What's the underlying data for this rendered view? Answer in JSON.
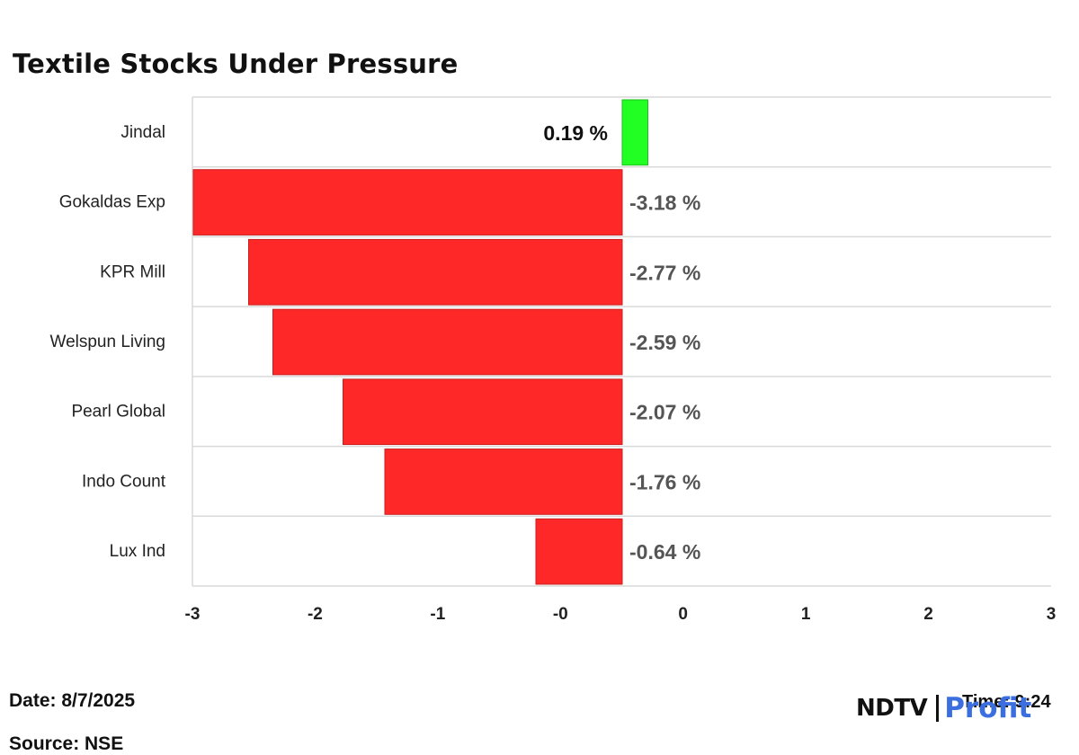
{
  "title": "Textile Stocks Under Pressure",
  "chart_data": {
    "type": "bar",
    "orientation": "horizontal",
    "categories": [
      "Jindal",
      "Gokaldas Exp",
      "KPR Mill",
      "Welspun Living",
      "Pearl Global",
      "Indo Count",
      "Lux Ind"
    ],
    "values": [
      0.19,
      -3.18,
      -2.77,
      -2.59,
      -2.07,
      -1.76,
      -0.64
    ],
    "data_labels": [
      "0.19 %",
      "-3.18 %",
      "-2.77 %",
      "-2.59 %",
      "-2.07 %",
      "-1.76 %",
      "-0.64 %"
    ],
    "xlim": [
      -3,
      3
    ],
    "x_ticks": [
      "-3",
      "-2",
      "-1",
      "-0",
      "0",
      "1",
      "2",
      "3"
    ],
    "colors": {
      "positive": "#22ff22",
      "negative": "#ff2828"
    },
    "grid": true
  },
  "footer": {
    "date": "Date: 8/7/2025",
    "time": "Time: 9:24",
    "source": "Source: NSE"
  },
  "logo": {
    "brand": "NDTV",
    "product": "Profit"
  }
}
